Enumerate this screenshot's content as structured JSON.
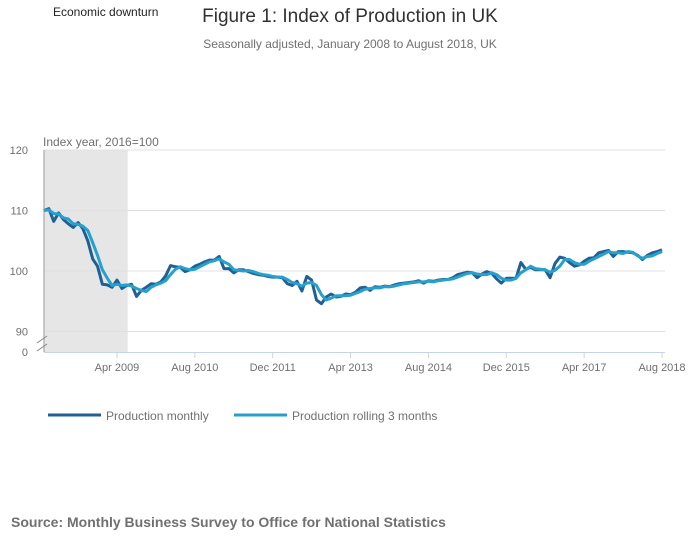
{
  "chart_data": {
    "type": "line",
    "title": "Figure 1: Index of Production in UK",
    "subtitle": "Seasonally adjusted, January 2008 to August 2018, UK",
    "ylabel": "Index year, 2016=100",
    "xlabel": "",
    "start_month": "Jan 2008",
    "end_month": "Aug 2018",
    "x_tick_labels": [
      "Apr 2009",
      "Aug 2010",
      "Dec 2011",
      "Apr 2013",
      "Aug 2014",
      "Dec 2015",
      "Apr 2017",
      "Aug 2018"
    ],
    "y_ticks": [
      90,
      100,
      110,
      120
    ],
    "y_axis_break_label": "0",
    "ylim": [
      90,
      120
    ],
    "grid": true,
    "legend_position": "bottom",
    "shaded_region": {
      "label": "Economic downturn",
      "from": "Jan 2008",
      "to": "Jun 2009",
      "color": "#e6e6e6"
    },
    "series": [
      {
        "name": "Production monthly",
        "color": "#206095",
        "values": [
          110,
          110.3,
          108.2,
          109.6,
          108.5,
          107.8,
          107.2,
          108,
          107,
          105,
          102,
          100.8,
          97.8,
          97.7,
          97.3,
          98.5,
          97.1,
          97.6,
          97.8,
          95.8,
          96.8,
          97.3,
          97.9,
          97.8,
          98.2,
          99.2,
          100.9,
          100.7,
          100.6,
          99.9,
          100.2,
          100.8,
          101.1,
          101.5,
          101.8,
          101.8,
          102.4,
          100.4,
          100.4,
          99.7,
          100.2,
          100.2,
          99.9,
          99.6,
          99.4,
          99.3,
          99.1,
          99.0,
          99.0,
          98.9,
          97.9,
          97.6,
          98.3,
          96.7,
          99.1,
          98.5,
          95.2,
          94.6,
          95.7,
          96.2,
          95.7,
          95.8,
          96.2,
          96.1,
          96.5,
          97.2,
          97.3,
          96.8,
          97.4,
          97.3,
          97.5,
          97.4,
          97.7,
          97.9,
          98.0,
          98.1,
          98.2,
          98.4,
          98.0,
          98.4,
          98.3,
          98.5,
          98.6,
          98.6,
          98.9,
          99.4,
          99.6,
          99.8,
          99.7,
          98.9,
          99.5,
          99.9,
          99.6,
          98.7,
          98.0,
          98.8,
          98.8,
          98.8,
          101.4,
          100.3,
          100.6,
          100.2,
          100.2,
          100.2,
          98.9,
          101.2,
          102.3,
          102.1,
          101.4,
          100.8,
          101.0,
          101.6,
          102.1,
          102.2,
          103.0,
          103.2,
          103.4,
          102.4,
          103.2,
          103.2,
          103.1,
          103.0,
          102.6,
          101.9,
          102.6,
          103.0,
          103.2,
          103.5
        ]
      },
      {
        "name": "Production rolling 3 months",
        "color": "#27a0cc",
        "values": [
          110,
          110.1,
          109.5,
          109.4,
          108.8,
          108.6,
          107.8,
          107.7,
          107.4,
          106.7,
          104.7,
          102.6,
          100.2,
          98.8,
          97.6,
          97.8,
          97.6,
          97.7,
          97.5,
          97.1,
          96.8,
          96.6,
          97.3,
          97.7,
          98.0,
          98.4,
          99.4,
          100.3,
          100.7,
          100.4,
          100.2,
          100.3,
          100.7,
          101.1,
          101.5,
          101.7,
          102.0,
          101.5,
          101.1,
          100.2,
          100.1,
          100.0,
          100.1,
          99.9,
          99.6,
          99.4,
          99.3,
          99.1,
          99.0,
          99.0,
          98.6,
          98.1,
          97.9,
          97.5,
          98.0,
          98.1,
          97.6,
          96.1,
          95.2,
          95.5,
          95.9,
          95.9,
          95.9,
          96.0,
          96.3,
          96.6,
          97.0,
          97.1,
          97.2,
          97.2,
          97.4,
          97.4,
          97.5,
          97.7,
          97.9,
          98.0,
          98.1,
          98.2,
          98.2,
          98.3,
          98.2,
          98.4,
          98.5,
          98.6,
          98.7,
          99.0,
          99.3,
          99.6,
          99.7,
          99.5,
          99.4,
          99.4,
          99.7,
          99.4,
          98.8,
          98.5,
          98.5,
          98.8,
          99.7,
          100.2,
          100.8,
          100.4,
          100.3,
          100.2,
          99.8,
          100.1,
          100.8,
          101.9,
          101.9,
          101.4,
          101.1,
          101.1,
          101.6,
          102.0,
          102.4,
          102.8,
          103.2,
          103.0,
          103.0,
          102.9,
          103.2,
          103.1,
          102.5,
          102.1,
          102.4,
          102.5,
          102.9,
          103.2
        ]
      }
    ]
  },
  "source": "Source: Monthly Business Survey to Office for National Statistics"
}
